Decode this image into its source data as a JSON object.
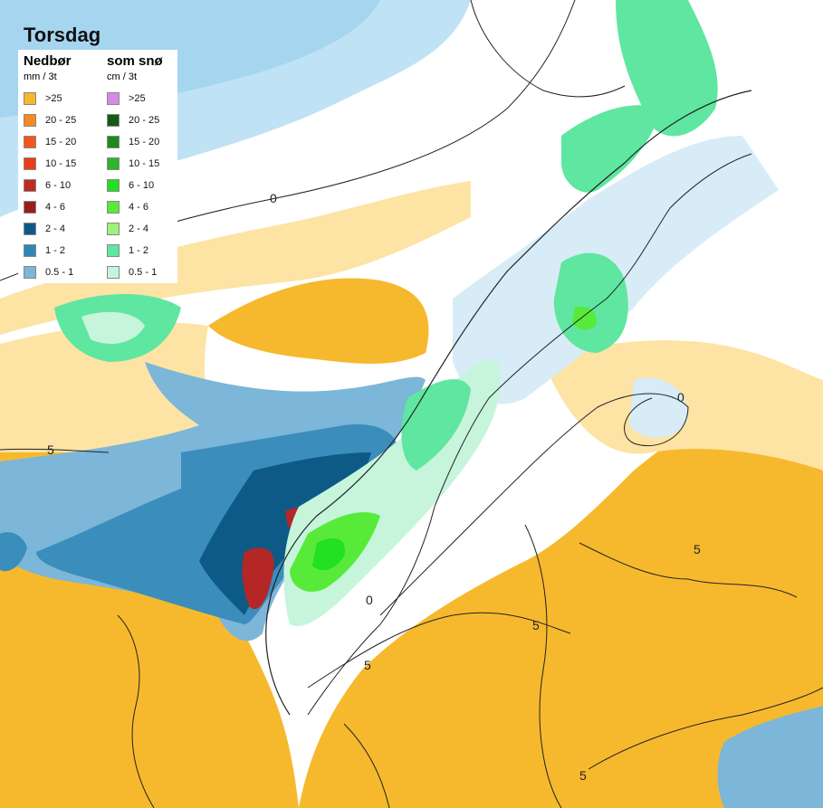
{
  "title": "Torsdag",
  "legend": {
    "rain": {
      "title": "Nedbør",
      "unit": "mm / 3t",
      "items": [
        {
          "label": ">25",
          "color": "#f5b82d"
        },
        {
          "label": "20 - 25",
          "color": "#f58a1e"
        },
        {
          "label": "15 - 20",
          "color": "#f4551c"
        },
        {
          "label": "10 - 15",
          "color": "#ea3c16"
        },
        {
          "label": "6 - 10",
          "color": "#c02a22"
        },
        {
          "label": "4 - 6",
          "color": "#9c1c1c"
        },
        {
          "label": "2 - 4",
          "color": "#0e5a86"
        },
        {
          "label": "1 - 2",
          "color": "#2f86b4"
        },
        {
          "label": "0.5 - 1",
          "color": "#7cb6d8"
        }
      ]
    },
    "snow": {
      "title": "som snø",
      "unit": "cm / 3t",
      "items": [
        {
          "label": ">25",
          "color": "#d58ae8"
        },
        {
          "label": "20 - 25",
          "color": "#145a14"
        },
        {
          "label": "15 - 20",
          "color": "#1c8a1c"
        },
        {
          "label": "10 - 15",
          "color": "#2ab82a"
        },
        {
          "label": "6 - 10",
          "color": "#22e022"
        },
        {
          "label": "4 - 6",
          "color": "#58ea38"
        },
        {
          "label": "2 - 4",
          "color": "#9ef07a"
        },
        {
          "label": "1 - 2",
          "color": "#5fe6a0"
        },
        {
          "label": "0.5 - 1",
          "color": "#c6f5dc"
        }
      ]
    }
  },
  "contours": {
    "zero_label": "0",
    "five_label": "5"
  },
  "colors": {
    "sea_light": "#a9d6f0",
    "orange_fill": "#f5b82d",
    "pale_orange": "#fde2a0",
    "snow_pale": "#d7ecf7"
  }
}
